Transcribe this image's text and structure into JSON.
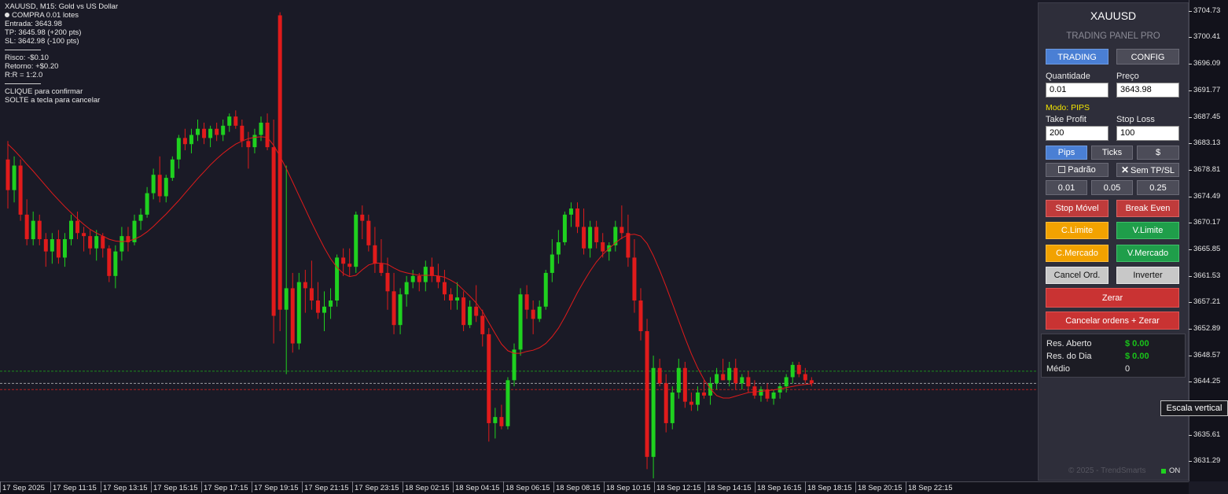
{
  "info": {
    "line1": "XAUUSD, M15:  Gold vs US Dollar",
    "line2": "COMPRA 0.01 lotes",
    "line3": "Entrada: 3643.98",
    "line4": "TP: 3645.98 (+200 pts)",
    "line5": "SL: 3642.98 (-100 pts)",
    "line6": "Risco: -$0.10",
    "line7": "Retorno: +$0.20",
    "line8": "R:R = 1:2.0",
    "line9": "CLIQUE para confirmar",
    "line10": "SOLTE a tecla para cancelar"
  },
  "colors": {
    "bull": "#1fd11f",
    "bear": "#e01b1b",
    "ma": "#e01b1b",
    "tp_line": "#1e8a1e",
    "entry_line": "#9a9aa0",
    "sl_line": "#b02020",
    "bg": "#1a1a26"
  },
  "price_axis": [
    "3704.73",
    "3700.41",
    "3696.09",
    "3691.77",
    "3687.45",
    "3683.13",
    "3678.81",
    "3674.49",
    "3670.17",
    "3665.85",
    "3661.53",
    "3657.21",
    "3652.89",
    "3648.57",
    "3644.25",
    "3635.61",
    "3631.29"
  ],
  "time_axis": [
    "17 Sep 2025",
    "17 Sep 11:15",
    "17 Sep 13:15",
    "17 Sep 15:15",
    "17 Sep 17:15",
    "17 Sep 19:15",
    "17 Sep 21:15",
    "17 Sep 23:15",
    "18 Sep 02:15",
    "18 Sep 04:15",
    "18 Sep 06:15",
    "18 Sep 08:15",
    "18 Sep 10:15",
    "18 Sep 12:15",
    "18 Sep 14:15",
    "18 Sep 16:15",
    "18 Sep 18:15",
    "18 Sep 20:15",
    "18 Sep 22:15"
  ],
  "tooltip": "Escala vertical",
  "panel": {
    "symbol": "XAUUSD",
    "subtitle": "TRADING PANEL PRO",
    "tab_trading": "TRADING",
    "tab_config": "CONFIG",
    "qty_label": "Quantidade",
    "qty_value": "0.01",
    "price_label": "Preço",
    "price_value": "3643.98",
    "mode": "Modo: PIPS",
    "tp_label": "Take Profit",
    "tp_value": "200",
    "sl_label": "Stop Loss",
    "sl_value": "100",
    "btn_pips": "Pips",
    "btn_ticks": "Ticks",
    "btn_dollar": "$",
    "btn_padrao": "Padrão",
    "btn_sem": "Sem TP/SL",
    "lot1": "0.01",
    "lot2": "0.05",
    "lot3": "0.25",
    "stop_movel": "Stop Móvel",
    "break_even": "Break Even",
    "c_limite": "C.Limite",
    "v_limite": "V.Limite",
    "c_mercado": "C.Mercado",
    "v_mercado": "V.Mercado",
    "cancel_ord": "Cancel Ord.",
    "inverter": "Inverter",
    "zerar": "Zerar",
    "cancel_zerar": "Cancelar ordens + Zerar",
    "res_aberto_label": "Res. Aberto",
    "res_aberto_value": "$ 0.00",
    "res_dia_label": "Res. do Dia",
    "res_dia_value": "$ 0.00",
    "medio_label": "Médio",
    "medio_value": "0",
    "footer": "© 2025 - TrendSmarts",
    "on": "ON"
  },
  "candles": [
    [
      3680.5,
      3683.5,
      3672.5,
      3675.5
    ],
    [
      3675.5,
      3681.0,
      3673.5,
      3679.5
    ],
    [
      3679.5,
      3680.5,
      3670.5,
      3671.5
    ],
    [
      3671.5,
      3674.0,
      3666.5,
      3667.5
    ],
    [
      3667.5,
      3672.0,
      3666.5,
      3670.5
    ],
    [
      3670.5,
      3671.5,
      3666.5,
      3667.5
    ],
    [
      3667.5,
      3668.5,
      3663.0,
      3665.5
    ],
    [
      3665.5,
      3668.5,
      3663.5,
      3667.5
    ],
    [
      3667.5,
      3669.0,
      3663.5,
      3664.5
    ],
    [
      3664.5,
      3668.5,
      3663.0,
      3667.5
    ],
    [
      3667.5,
      3671.5,
      3666.5,
      3670.5
    ],
    [
      3670.5,
      3672.0,
      3667.5,
      3668.5
    ],
    [
      3668.5,
      3669.5,
      3665.5,
      3668.0
    ],
    [
      3668.0,
      3669.0,
      3665.0,
      3666.0
    ],
    [
      3666.0,
      3669.0,
      3664.0,
      3668.0
    ],
    [
      3668.0,
      3668.5,
      3664.5,
      3666.0
    ],
    [
      3666.0,
      3666.5,
      3660.5,
      3661.5
    ],
    [
      3661.5,
      3666.5,
      3659.5,
      3665.5
    ],
    [
      3665.5,
      3669.5,
      3664.0,
      3668.0
    ],
    [
      3668.0,
      3669.5,
      3665.5,
      3667.0
    ],
    [
      3667.0,
      3671.5,
      3666.5,
      3670.5
    ],
    [
      3670.5,
      3672.5,
      3669.0,
      3671.5
    ],
    [
      3671.5,
      3676.0,
      3671.0,
      3675.0
    ],
    [
      3675.0,
      3679.0,
      3674.0,
      3678.0
    ],
    [
      3678.0,
      3681.0,
      3673.5,
      3674.5
    ],
    [
      3674.5,
      3678.0,
      3673.5,
      3677.5
    ],
    [
      3677.5,
      3681.0,
      3677.0,
      3680.5
    ],
    [
      3680.5,
      3684.5,
      3679.0,
      3684.0
    ],
    [
      3684.0,
      3685.5,
      3682.0,
      3683.0
    ],
    [
      3683.0,
      3685.5,
      3681.5,
      3684.5
    ],
    [
      3684.5,
      3687.0,
      3683.5,
      3685.5
    ],
    [
      3685.5,
      3686.5,
      3683.0,
      3684.0
    ],
    [
      3684.0,
      3686.0,
      3682.5,
      3685.5
    ],
    [
      3685.5,
      3686.5,
      3683.5,
      3684.5
    ],
    [
      3684.5,
      3687.0,
      3683.5,
      3686.0
    ],
    [
      3686.0,
      3688.0,
      3685.0,
      3687.5
    ],
    [
      3687.5,
      3688.5,
      3685.5,
      3686.0
    ],
    [
      3686.0,
      3687.0,
      3682.5,
      3683.5
    ],
    [
      3683.5,
      3685.0,
      3679.0,
      3682.5
    ],
    [
      3682.5,
      3685.5,
      3681.5,
      3684.5
    ],
    [
      3684.5,
      3687.5,
      3683.5,
      3686.5
    ],
    [
      3686.5,
      3688.0,
      3682.0,
      3682.5
    ],
    [
      3682.5,
      3687.0,
      3650.5,
      3655.0
    ],
    [
      3704.0,
      3704.5,
      3652.5,
      3656.0
    ],
    [
      3656.0,
      3679.5,
      3645.5,
      3659.5
    ],
    [
      3659.5,
      3662.0,
      3649.0,
      3650.5
    ],
    [
      3650.5,
      3662.0,
      3649.5,
      3660.5
    ],
    [
      3660.5,
      3662.5,
      3655.5,
      3659.5
    ],
    [
      3659.5,
      3664.0,
      3656.0,
      3657.5
    ],
    [
      3657.5,
      3660.5,
      3654.5,
      3655.5
    ],
    [
      3655.5,
      3659.0,
      3652.5,
      3656.5
    ],
    [
      3656.5,
      3659.5,
      3654.5,
      3657.5
    ],
    [
      3657.5,
      3665.0,
      3656.5,
      3664.5
    ],
    [
      3664.5,
      3666.0,
      3661.5,
      3663.5
    ],
    [
      3663.5,
      3666.0,
      3661.5,
      3663.0
    ],
    [
      3663.0,
      3672.0,
      3662.0,
      3671.5
    ],
    [
      3671.5,
      3673.0,
      3667.5,
      3670.5
    ],
    [
      3670.5,
      3671.5,
      3665.5,
      3666.5
    ],
    [
      3666.5,
      3669.5,
      3662.0,
      3663.5
    ],
    [
      3663.5,
      3667.5,
      3661.5,
      3662.0
    ],
    [
      3662.0,
      3664.5,
      3656.0,
      3659.0
    ],
    [
      3659.0,
      3662.0,
      3652.0,
      3653.5
    ],
    [
      3653.5,
      3659.5,
      3652.0,
      3658.5
    ],
    [
      3658.5,
      3661.5,
      3656.5,
      3660.5
    ],
    [
      3660.5,
      3662.5,
      3659.5,
      3661.5
    ],
    [
      3661.5,
      3662.0,
      3659.0,
      3660.5
    ],
    [
      3660.5,
      3664.0,
      3659.0,
      3663.0
    ],
    [
      3663.0,
      3664.5,
      3660.5,
      3661.5
    ],
    [
      3661.5,
      3663.5,
      3659.5,
      3660.5
    ],
    [
      3660.5,
      3662.5,
      3657.5,
      3658.5
    ],
    [
      3658.5,
      3659.5,
      3656.0,
      3657.5
    ],
    [
      3657.5,
      3660.5,
      3656.0,
      3658.0
    ],
    [
      3658.0,
      3659.0,
      3652.5,
      3653.5
    ],
    [
      3653.5,
      3657.5,
      3653.0,
      3656.5
    ],
    [
      3656.5,
      3660.0,
      3654.0,
      3655.0
    ],
    [
      3655.0,
      3656.0,
      3650.0,
      3652.0
    ],
    [
      3652.0,
      3653.0,
      3634.5,
      3637.5
    ],
    [
      3637.5,
      3640.0,
      3635.0,
      3638.5
    ],
    [
      3638.5,
      3640.5,
      3636.5,
      3637.0
    ],
    [
      3637.0,
      3645.0,
      3636.5,
      3644.5
    ],
    [
      3644.5,
      3650.5,
      3643.5,
      3649.5
    ],
    [
      3649.5,
      3659.5,
      3648.5,
      3658.5
    ],
    [
      3658.5,
      3660.0,
      3654.5,
      3656.0
    ],
    [
      3656.0,
      3657.5,
      3652.0,
      3654.5
    ],
    [
      3654.5,
      3657.5,
      3654.0,
      3656.5
    ],
    [
      3656.5,
      3662.5,
      3656.0,
      3662.0
    ],
    [
      3662.0,
      3667.5,
      3660.5,
      3665.0
    ],
    [
      3665.0,
      3669.0,
      3663.5,
      3667.0
    ],
    [
      3667.0,
      3672.0,
      3666.5,
      3671.5
    ],
    [
      3671.5,
      3673.5,
      3669.5,
      3672.5
    ],
    [
      3672.5,
      3673.5,
      3668.5,
      3669.5
    ],
    [
      3669.5,
      3672.5,
      3665.0,
      3666.0
    ],
    [
      3666.0,
      3670.5,
      3664.5,
      3669.5
    ],
    [
      3669.5,
      3670.5,
      3666.0,
      3667.0
    ],
    [
      3667.0,
      3668.5,
      3664.5,
      3665.5
    ],
    [
      3665.5,
      3667.0,
      3664.0,
      3666.5
    ],
    [
      3666.5,
      3670.5,
      3665.5,
      3669.5
    ],
    [
      3669.5,
      3673.0,
      3667.5,
      3668.5
    ],
    [
      3668.5,
      3671.5,
      3663.0,
      3664.5
    ],
    [
      3664.5,
      3667.5,
      3655.5,
      3657.5
    ],
    [
      3657.5,
      3659.5,
      3651.0,
      3652.5
    ],
    [
      3652.5,
      3654.5,
      3630.0,
      3632.0
    ],
    [
      3632.0,
      3648.5,
      3628.5,
      3646.5
    ],
    [
      3646.5,
      3648.0,
      3643.5,
      3644.0
    ],
    [
      3644.0,
      3645.5,
      3636.0,
      3637.5
    ],
    [
      3637.5,
      3643.5,
      3636.5,
      3642.5
    ],
    [
      3642.5,
      3648.0,
      3641.5,
      3646.5
    ],
    [
      3646.5,
      3647.5,
      3640.0,
      3641.0
    ],
    [
      3641.0,
      3642.5,
      3639.5,
      3640.5
    ],
    [
      3640.5,
      3643.5,
      3639.5,
      3642.5
    ],
    [
      3642.5,
      3644.5,
      3641.5,
      3642.0
    ],
    [
      3642.0,
      3645.0,
      3640.5,
      3644.0
    ],
    [
      3644.0,
      3646.5,
      3643.0,
      3645.5
    ],
    [
      3645.5,
      3648.0,
      3644.5,
      3644.5
    ],
    [
      3644.5,
      3647.5,
      3643.5,
      3646.5
    ],
    [
      3646.5,
      3648.0,
      3643.0,
      3644.0
    ],
    [
      3644.0,
      3645.5,
      3643.0,
      3645.0
    ],
    [
      3645.0,
      3646.0,
      3642.5,
      3643.5
    ],
    [
      3643.5,
      3644.5,
      3641.5,
      3642.0
    ],
    [
      3642.0,
      3643.5,
      3641.0,
      3643.0
    ],
    [
      3643.0,
      3644.0,
      3641.0,
      3641.5
    ],
    [
      3641.5,
      3643.0,
      3640.5,
      3642.5
    ],
    [
      3642.5,
      3644.0,
      3641.5,
      3643.5
    ],
    [
      3643.5,
      3645.5,
      3642.5,
      3645.0
    ],
    [
      3645.0,
      3647.5,
      3644.0,
      3647.0
    ],
    [
      3647.0,
      3647.5,
      3645.0,
      3645.5
    ],
    [
      3645.5,
      3646.5,
      3644.0,
      3644.5
    ],
    [
      3644.5,
      3645.0,
      3643.5,
      3644.0
    ]
  ],
  "ma": [
    3683.0,
    3682.0,
    3680.9,
    3679.7,
    3678.6,
    3677.4,
    3676.2,
    3675.0,
    3673.9,
    3672.8,
    3671.8,
    3670.8,
    3669.9,
    3669.1,
    3668.5,
    3668.0,
    3667.5,
    3667.2,
    3667.1,
    3667.2,
    3667.5,
    3668.0,
    3668.7,
    3669.6,
    3670.6,
    3671.6,
    3672.7,
    3673.8,
    3675.0,
    3676.2,
    3677.4,
    3678.5,
    3679.6,
    3680.6,
    3681.5,
    3682.3,
    3683.0,
    3683.5,
    3683.9,
    3684.1,
    3684.2,
    3684.1,
    3682.8,
    3681.0,
    3679.0,
    3676.8,
    3674.6,
    3672.4,
    3670.2,
    3668.1,
    3666.1,
    3664.3,
    3662.9,
    3661.9,
    3661.4,
    3661.6,
    3662.5,
    3663.3,
    3663.6,
    3663.6,
    3663.4,
    3662.8,
    3662.3,
    3662.0,
    3661.8,
    3661.6,
    3661.6,
    3661.6,
    3661.5,
    3661.3,
    3660.8,
    3660.2,
    3659.2,
    3658.2,
    3657.1,
    3655.7,
    3653.9,
    3652.1,
    3650.4,
    3649.3,
    3648.9,
    3648.9,
    3649.2,
    3649.4,
    3649.8,
    3650.5,
    3651.6,
    3653.0,
    3654.8,
    3656.8,
    3658.8,
    3660.6,
    3662.3,
    3663.8,
    3665.0,
    3666.0,
    3666.9,
    3667.7,
    3668.2,
    3668.3,
    3668.0,
    3666.8,
    3664.8,
    3662.4,
    3659.8,
    3657.0,
    3654.2,
    3651.4,
    3648.8,
    3646.5,
    3644.6,
    3643.1,
    3642.0,
    3641.6,
    3641.6,
    3641.9,
    3642.2,
    3642.5,
    3642.6,
    3642.7,
    3642.8,
    3642.9,
    3643.1,
    3643.3,
    3643.5,
    3643.7,
    3643.8,
    3643.9
  ],
  "chart_data": {
    "type": "candlestick",
    "title": "XAUUSD, M15:  Gold vs US Dollar",
    "ylim": [
      3628.0,
      3706.5
    ],
    "levels": {
      "tp": 3645.98,
      "entry": 3643.98,
      "sl": 3642.98
    }
  }
}
